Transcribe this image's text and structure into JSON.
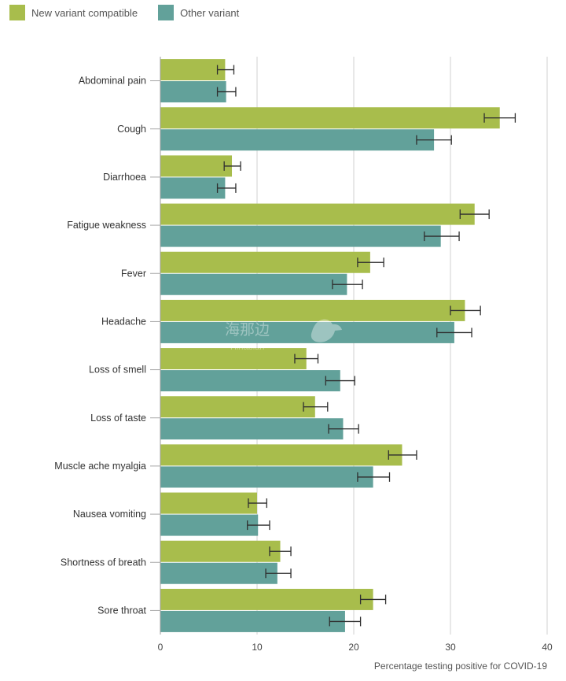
{
  "chart_data": {
    "type": "bar",
    "orientation": "horizontal",
    "title": "",
    "xlabel": "Percentage testing positive for COVID-19",
    "ylabel": "",
    "xlim": [
      0,
      40
    ],
    "x_ticks": [
      0,
      10,
      20,
      30,
      40
    ],
    "grid": true,
    "legend_position": "top-left",
    "categories": [
      "Abdominal pain",
      "Cough",
      "Diarrhoea",
      "Fatigue weakness",
      "Fever",
      "Headache",
      "Loss of smell",
      "Loss of taste",
      "Muscle ache myalgia",
      "Nausea vomiting",
      "Shortness of breath",
      "Sore throat"
    ],
    "series": [
      {
        "name": "New variant compatible",
        "color": "#a8bd4c",
        "values": [
          6.7,
          35.1,
          7.4,
          32.5,
          21.7,
          31.5,
          15.1,
          16.0,
          25.0,
          10.0,
          12.4,
          22.0
        ],
        "error_low": [
          5.9,
          33.5,
          6.6,
          31.0,
          20.4,
          30.0,
          13.9,
          14.8,
          23.6,
          9.1,
          11.3,
          20.7
        ],
        "error_high": [
          7.6,
          36.7,
          8.3,
          34.0,
          23.1,
          33.1,
          16.3,
          17.3,
          26.5,
          11.0,
          13.5,
          23.3
        ]
      },
      {
        "name": "Other variant",
        "color": "#62a19a",
        "values": [
          6.8,
          28.3,
          6.7,
          29.0,
          19.3,
          30.4,
          18.6,
          18.9,
          22.0,
          10.1,
          12.1,
          19.1
        ],
        "error_low": [
          5.9,
          26.5,
          5.9,
          27.3,
          17.8,
          28.6,
          17.1,
          17.4,
          20.4,
          9.0,
          10.9,
          17.5
        ],
        "error_high": [
          7.8,
          30.1,
          7.8,
          30.9,
          20.9,
          32.2,
          20.1,
          20.5,
          23.7,
          11.3,
          13.5,
          20.7
        ]
      }
    ]
  },
  "watermark": {
    "text": "海那边",
    "subtext": "Hinabian"
  }
}
